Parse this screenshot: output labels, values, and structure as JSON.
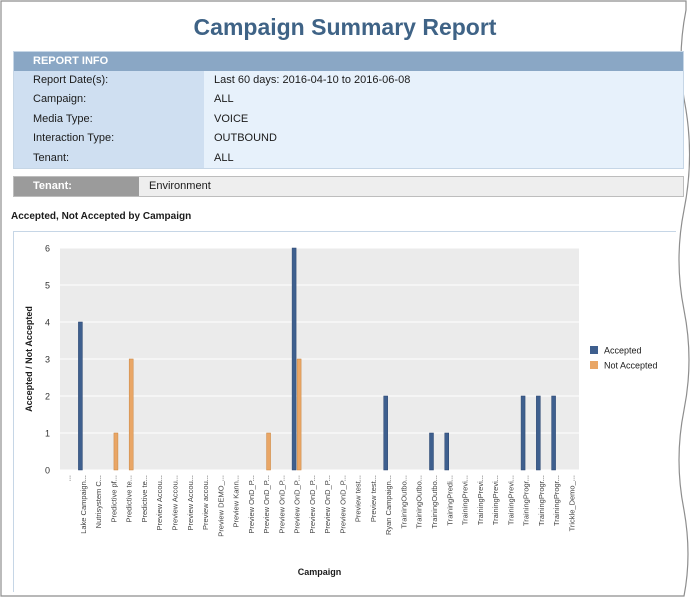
{
  "page": {
    "title": "Campaign Summary Report"
  },
  "report_info": {
    "header": "REPORT INFO",
    "rows": [
      {
        "label": "Report Date(s):",
        "value": "Last 60 days: 2016-04-10 to 2016-06-08"
      },
      {
        "label": "Campaign:",
        "value": "ALL"
      },
      {
        "label": "Media Type:",
        "value": "VOICE"
      },
      {
        "label": "Interaction Type:",
        "value": "OUTBOUND"
      },
      {
        "label": "Tenant:",
        "value": "ALL"
      }
    ]
  },
  "tenant_bar": {
    "label": "Tenant:",
    "value": "Environment"
  },
  "chart_heading": "Accepted, Not Accepted by Campaign",
  "colors": {
    "title": "#3f6386",
    "accepted": "#3e5f8e",
    "not_accepted": "#e9a666",
    "plot_bg": "#ebebeb",
    "info_header": "#8aa7c5"
  },
  "chart_data": {
    "type": "bar",
    "title": "",
    "xlabel": "Campaign",
    "ylabel": "Accepted / Not Accepted",
    "ylim": [
      0,
      6
    ],
    "yticks": [
      0,
      1,
      2,
      3,
      4,
      5,
      6
    ],
    "grid": true,
    "legend_position": "right",
    "categories": [
      "...",
      "Lake Campaign...",
      "Nutrisystem C...",
      "Predictive pf...",
      "Predictive te...",
      "Predictive te...",
      "Preview Accou...",
      "Preview Accou...",
      "Preview Accou...",
      "Preview accou...",
      "Preview DEMO_...",
      "Preview Kann...",
      "Preview OnD_P...",
      "Preview OnD_P...",
      "Preview OnD_P...",
      "Preview OnD_P...",
      "Preview OnD_P...",
      "Preview OnD_P...",
      "Preview OnD_P...",
      "Preview test...",
      "Preview test...",
      "Ryan Campaign...",
      "TrainingOutbo...",
      "TrainingOutbo...",
      "TrainingOutbo...",
      "TrainingPredi...",
      "TrainingPrevi...",
      "TrainingPrevi...",
      "TrainingPrevi...",
      "TrainingPrevi...",
      "TrainingProgr...",
      "TrainingProgr...",
      "TrainingProgr...",
      "Trickle_Demo_..."
    ],
    "series": [
      {
        "name": "Accepted",
        "values": [
          0,
          4,
          0,
          0,
          0,
          0,
          0,
          0,
          0,
          0,
          0,
          0,
          0,
          0,
          0,
          6,
          0,
          0,
          0,
          0,
          0,
          2,
          0,
          0,
          1,
          1,
          0,
          0,
          0,
          0,
          2,
          2,
          2,
          0
        ]
      },
      {
        "name": "Not Accepted",
        "values": [
          0,
          0,
          0,
          1,
          3,
          0,
          0,
          0,
          0,
          0,
          0,
          0,
          0,
          1,
          0,
          3,
          0,
          0,
          0,
          0,
          0,
          0,
          0,
          0,
          0,
          0,
          0,
          0,
          0,
          0,
          0,
          0,
          0,
          0
        ]
      }
    ]
  }
}
